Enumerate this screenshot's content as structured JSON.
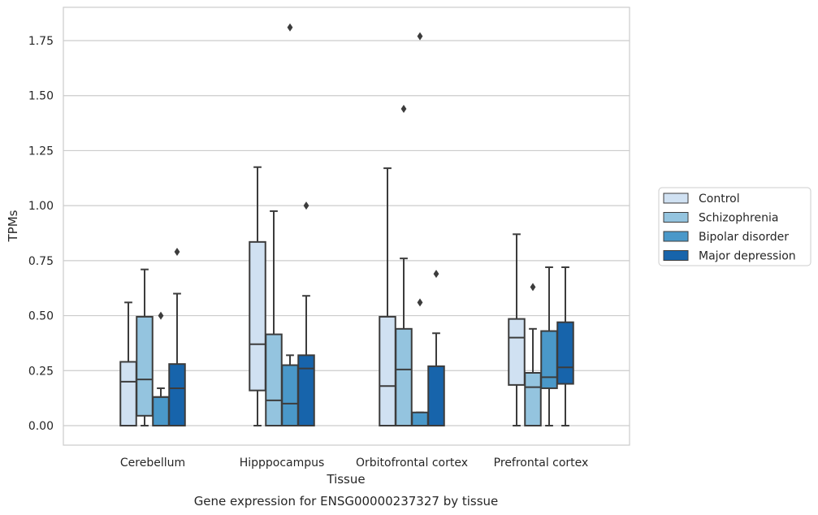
{
  "chart_data": {
    "type": "box",
    "caption": "Gene expression for ENSG00000237327 by tissue",
    "xlabel": "Tissue",
    "ylabel": "TPMs",
    "ylim": [
      -0.09,
      1.9
    ],
    "yticks": [
      "0.00",
      "0.25",
      "0.50",
      "0.75",
      "1.00",
      "1.25",
      "1.50",
      "1.75"
    ],
    "ytick_values": [
      0,
      0.25,
      0.5,
      0.75,
      1.0,
      1.25,
      1.5,
      1.75
    ],
    "grid": true,
    "legend_position": "right-outside",
    "categories": [
      "Cerebellum",
      "Hipppocampus",
      "Orbitofrontal cortex",
      "Prefrontal cortex"
    ],
    "series": [
      {
        "name": "Control",
        "color": "#d0e1f2",
        "boxes": [
          {
            "min": 0,
            "q1": 0,
            "median": 0.2,
            "q3": 0.29,
            "max": 0.56,
            "outliers": []
          },
          {
            "min": 0,
            "q1": 0.16,
            "median": 0.37,
            "q3": 0.835,
            "max": 1.175,
            "outliers": []
          },
          {
            "min": 0,
            "q1": 0,
            "median": 0.18,
            "q3": 0.495,
            "max": 1.17,
            "outliers": []
          },
          {
            "min": 0,
            "q1": 0.185,
            "median": 0.4,
            "q3": 0.485,
            "max": 0.87,
            "outliers": []
          }
        ]
      },
      {
        "name": "Schizophrenia",
        "color": "#94c4df",
        "boxes": [
          {
            "min": 0,
            "q1": 0.045,
            "median": 0.21,
            "q3": 0.495,
            "max": 0.71,
            "outliers": []
          },
          {
            "min": 0,
            "q1": 0,
            "median": 0.115,
            "q3": 0.415,
            "max": 0.975,
            "outliers": []
          },
          {
            "min": 0,
            "q1": 0,
            "median": 0.255,
            "q3": 0.44,
            "max": 0.76,
            "outliers": [
              1.44
            ]
          },
          {
            "min": 0,
            "q1": 0,
            "median": 0.175,
            "q3": 0.24,
            "max": 0.44,
            "outliers": [
              0.63
            ]
          }
        ]
      },
      {
        "name": "Bipolar disorder",
        "color": "#4a98c9",
        "boxes": [
          {
            "min": 0,
            "q1": 0,
            "median": 0.13,
            "q3": 0.13,
            "max": 0.17,
            "outliers": [
              0.5
            ]
          },
          {
            "min": 0,
            "q1": 0,
            "median": 0.1,
            "q3": 0.275,
            "max": 0.32,
            "outliers": [
              1.81
            ]
          },
          {
            "min": 0,
            "q1": 0,
            "median": 0,
            "q3": 0.06,
            "max": 0.06,
            "outliers": [
              0.56,
              1.77
            ]
          },
          {
            "min": 0,
            "q1": 0.17,
            "median": 0.22,
            "q3": 0.43,
            "max": 0.72,
            "outliers": []
          }
        ]
      },
      {
        "name": "Major depression",
        "color": "#1764ab",
        "boxes": [
          {
            "min": 0,
            "q1": 0,
            "median": 0.17,
            "q3": 0.28,
            "max": 0.6,
            "outliers": [
              0.79
            ]
          },
          {
            "min": 0,
            "q1": 0,
            "median": 0.26,
            "q3": 0.32,
            "max": 0.59,
            "outliers": [
              1.0
            ]
          },
          {
            "min": 0,
            "q1": 0,
            "median": 0,
            "q3": 0.27,
            "max": 0.42,
            "outliers": [
              0.69
            ]
          },
          {
            "min": 0,
            "q1": 0.19,
            "median": 0.265,
            "q3": 0.47,
            "max": 0.72,
            "outliers": []
          }
        ]
      }
    ]
  }
}
